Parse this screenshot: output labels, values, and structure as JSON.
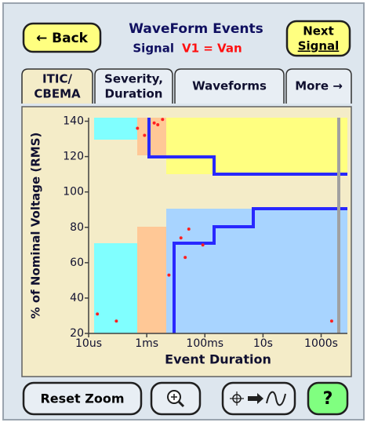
{
  "header": {
    "back": "← Back",
    "title": "WaveForm Events",
    "signal_label": "Signal",
    "signal_value": "V1 = Van",
    "next": [
      "Next",
      "Signal"
    ]
  },
  "tabs": [
    [
      "ITIC/",
      "CBEMA"
    ],
    [
      "Severity,",
      "Duration"
    ],
    [
      "Waveforms"
    ],
    [
      "More →"
    ]
  ],
  "chart_data": {
    "type": "scatter",
    "xlabel": "Event Duration",
    "ylabel": "% of Nominal Voltage (RMS)",
    "xscale": "log",
    "color": "#ff2020",
    "x": [
      2e-05,
      9e-05,
      0.00048,
      0.00084,
      0.0018,
      0.0024,
      0.0035,
      0.0058,
      0.015,
      0.028,
      0.021,
      0.085,
      2300
    ],
    "values": [
      31,
      27,
      136,
      132,
      139,
      138,
      141,
      53,
      74,
      79,
      63,
      70,
      27
    ],
    "xlim": [
      1e-05,
      8000
    ],
    "ylim": [
      20,
      142
    ],
    "xticks": [
      {
        "value": 1e-05,
        "label": "10us"
      },
      {
        "value": 0.001,
        "label": "1ms"
      },
      {
        "value": 0.1,
        "label": "100ms"
      },
      {
        "value": 10,
        "label": "10s"
      },
      {
        "value": 1000,
        "label": "1000s"
      }
    ],
    "yticks": [
      20,
      40,
      60,
      80,
      100,
      120,
      140
    ]
  },
  "toolbar": {
    "reset": "Reset Zoom",
    "help": "?"
  }
}
